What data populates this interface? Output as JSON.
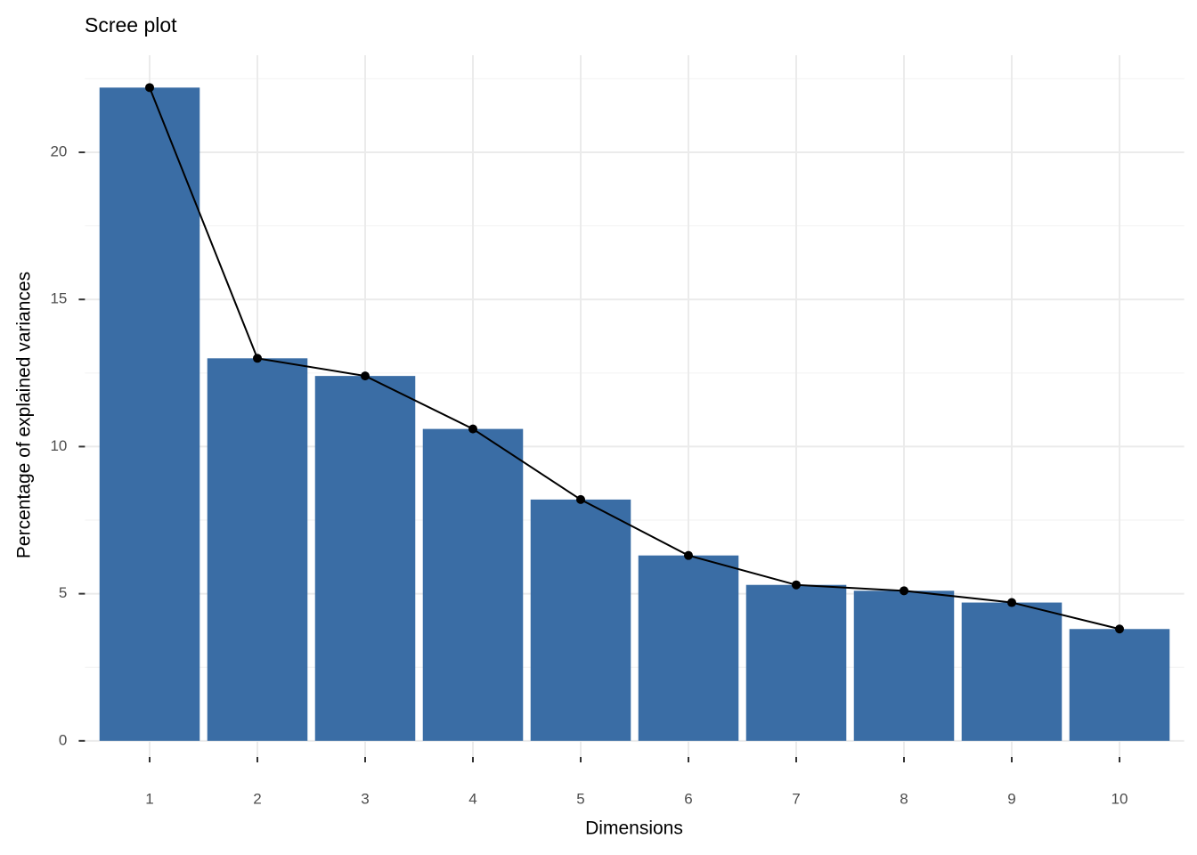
{
  "chart_data": {
    "type": "bar",
    "title": "Scree plot",
    "x_label": "Dimensions",
    "y_label": "Percentage of explained variances",
    "categories": [
      "1",
      "2",
      "3",
      "4",
      "5",
      "6",
      "7",
      "8",
      "9",
      "10"
    ],
    "values": [
      22.2,
      13.0,
      12.4,
      10.6,
      8.2,
      6.3,
      5.3,
      5.1,
      4.7,
      3.8
    ],
    "color": "#3a6da5",
    "line_color": "#000000",
    "ylim": [
      -0.55,
      23.3
    ],
    "yticks": [
      0,
      5,
      10,
      15,
      20
    ],
    "grid": true
  }
}
